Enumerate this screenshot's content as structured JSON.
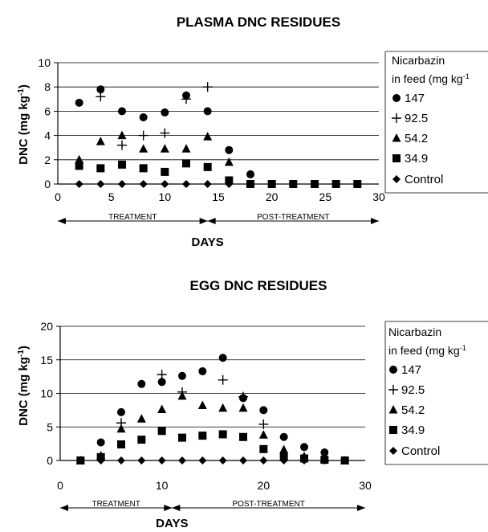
{
  "chart_data": [
    {
      "type": "scatter",
      "title": "PLASMA DNC RESIDUES",
      "ylabel_main": "DNC (mg kg",
      "ylabel_sup": "-1",
      "ylabel_end": ")",
      "xlabel": "DAYS",
      "xlim": [
        0,
        30
      ],
      "ylim": [
        0,
        10
      ],
      "xticks": [
        0,
        5,
        10,
        15,
        20,
        25,
        30
      ],
      "yticks": [
        0,
        2,
        4,
        6,
        8,
        10
      ],
      "phases": {
        "treatment": "TREATMENT",
        "post": "POST-TREATMENT",
        "boundary": 14
      },
      "legend_title_1": "Nicarbazin",
      "legend_title_2": "in feed (mg kg",
      "legend_title_sup": "-1",
      "series": [
        {
          "name": "147",
          "marker": "circle",
          "x": [
            2,
            4,
            6,
            8,
            10,
            12,
            14,
            16,
            18,
            20,
            22,
            24,
            26,
            28
          ],
          "y": [
            6.7,
            7.8,
            6.0,
            5.5,
            5.9,
            7.3,
            6.0,
            2.8,
            0.8,
            0,
            0,
            0,
            0,
            0
          ]
        },
        {
          "name": "92.5",
          "marker": "plus",
          "x": [
            4,
            6,
            8,
            10,
            12,
            14
          ],
          "y": [
            7.2,
            3.2,
            4.0,
            4.2,
            7.0,
            8.0
          ]
        },
        {
          "name": "54.2",
          "marker": "triangle",
          "x": [
            2,
            4,
            6,
            8,
            10,
            12,
            14,
            16
          ],
          "y": [
            2.0,
            3.5,
            4.0,
            2.9,
            2.9,
            2.9,
            3.9,
            1.8
          ]
        },
        {
          "name": "34.9",
          "marker": "square",
          "x": [
            2,
            4,
            6,
            8,
            10,
            12,
            14,
            16,
            18,
            20,
            22,
            24,
            26,
            28
          ],
          "y": [
            1.5,
            1.3,
            1.6,
            1.3,
            1.0,
            1.7,
            1.4,
            0.3,
            0,
            0,
            0,
            0,
            0,
            0
          ]
        },
        {
          "name": "Control",
          "marker": "diamond",
          "x": [
            2,
            4,
            6,
            8,
            10,
            12,
            14,
            16,
            18,
            20,
            22,
            24,
            26,
            28
          ],
          "y": [
            0,
            0,
            0,
            0,
            0,
            0,
            0,
            0,
            0,
            0,
            0,
            0,
            0,
            0
          ]
        }
      ]
    },
    {
      "type": "scatter",
      "title": "EGG DNC RESIDUES",
      "ylabel_main": "DNC (mg kg",
      "ylabel_sup": "-1",
      "ylabel_end": ")",
      "xlabel": "DAYS",
      "xlim": [
        0,
        30
      ],
      "ylim": [
        0,
        20
      ],
      "xticks": [
        0,
        10,
        20,
        30
      ],
      "yticks": [
        0,
        5,
        10,
        15,
        20
      ],
      "phases": {
        "treatment": "TREATMENT",
        "post": "POST-TREATMENT",
        "boundary": 11
      },
      "legend_title_1": "Nicarbazin",
      "legend_title_2": "in feed (mg kg",
      "legend_title_sup": "-1",
      "series": [
        {
          "name": "147",
          "marker": "circle",
          "x": [
            2,
            4,
            6,
            8,
            10,
            12,
            14,
            16,
            18,
            20,
            22,
            24,
            26,
            28
          ],
          "y": [
            0,
            2.7,
            7.2,
            11.4,
            11.7,
            12.6,
            13.3,
            15.3,
            9.3,
            7.5,
            3.5,
            2.0,
            1.2,
            0
          ]
        },
        {
          "name": "92.5",
          "marker": "plus",
          "x": [
            6,
            10,
            12,
            16,
            18,
            20
          ],
          "y": [
            5.6,
            12.8,
            10.2,
            12.0,
            9.5,
            5.4
          ]
        },
        {
          "name": "54.2",
          "marker": "triangle",
          "x": [
            2,
            4,
            6,
            8,
            10,
            12,
            14,
            16,
            18,
            20,
            22,
            24,
            26,
            28
          ],
          "y": [
            0,
            0.7,
            4.7,
            6.2,
            7.6,
            9.6,
            8.2,
            7.8,
            7.8,
            3.8,
            1.6,
            0.6,
            0.3,
            0
          ]
        },
        {
          "name": "34.9",
          "marker": "square",
          "x": [
            2,
            4,
            6,
            8,
            10,
            12,
            14,
            16,
            18,
            20,
            22,
            24,
            26,
            28
          ],
          "y": [
            0,
            0.5,
            2.4,
            3.1,
            4.4,
            3.4,
            3.7,
            3.9,
            3.5,
            1.7,
            0.5,
            0.3,
            0.1,
            0
          ]
        },
        {
          "name": "Control",
          "marker": "diamond",
          "x": [
            2,
            4,
            6,
            8,
            10,
            12,
            14,
            16,
            18,
            20,
            22,
            24,
            26,
            28
          ],
          "y": [
            0,
            0,
            0,
            0,
            0,
            0,
            0,
            0,
            0,
            0,
            0,
            0,
            0,
            0
          ]
        }
      ]
    }
  ]
}
